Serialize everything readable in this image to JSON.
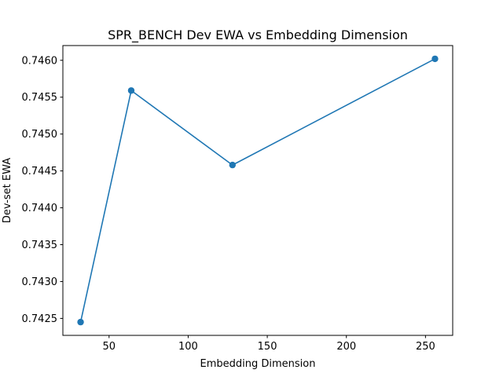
{
  "chart_data": {
    "type": "line",
    "title": "SPR_BENCH Dev EWA vs Embedding Dimension",
    "xlabel": "Embedding Dimension",
    "ylabel": "Dev-set EWA",
    "x": [
      32,
      64,
      128,
      256
    ],
    "series": [
      {
        "values": [
          0.74245,
          0.74559,
          0.74458,
          0.74602
        ],
        "color": "#1f77b4",
        "marker": "circle"
      }
    ],
    "xlim": [
      20.8,
      267.2
    ],
    "ylim": [
      0.74227,
      0.7462
    ],
    "xticks": [
      50,
      100,
      150,
      200,
      250
    ],
    "xtick_labels": [
      "50",
      "100",
      "150",
      "200",
      "250"
    ],
    "yticks": [
      0.7425,
      0.743,
      0.7435,
      0.744,
      0.7445,
      0.745,
      0.7455,
      0.746
    ],
    "ytick_labels": [
      "0.7425",
      "0.7430",
      "0.7435",
      "0.7440",
      "0.7445",
      "0.7450",
      "0.7455",
      "0.7460"
    ],
    "grid": false
  }
}
